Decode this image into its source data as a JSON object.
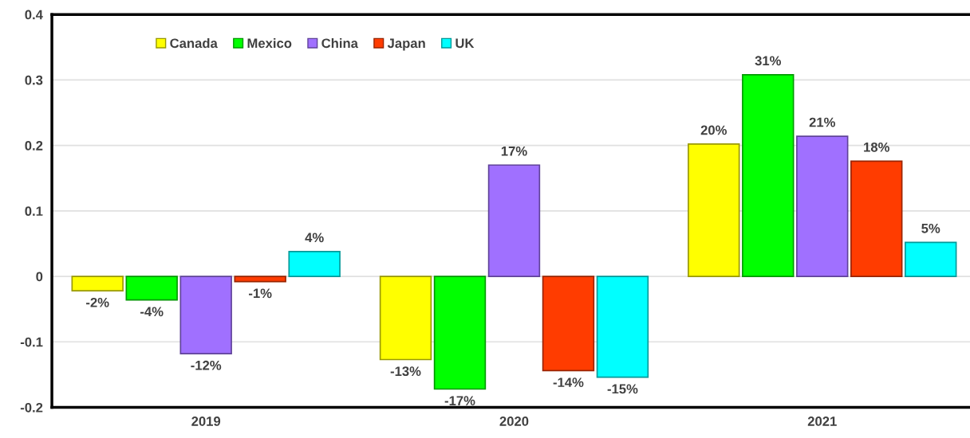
{
  "chart_data": {
    "type": "bar",
    "categories": [
      "2019",
      "2020",
      "2021"
    ],
    "series": [
      {
        "name": "Canada",
        "color": "#ffff00",
        "values": [
          -0.022,
          -0.127,
          0.202
        ],
        "value_labels": [
          "-2%",
          "-13%",
          "20%"
        ]
      },
      {
        "name": "Mexico",
        "color": "#00ff00",
        "values": [
          -0.036,
          -0.172,
          0.308
        ],
        "value_labels": [
          "-4%",
          "-17%",
          "31%"
        ]
      },
      {
        "name": "China",
        "color": "#a070ff",
        "values": [
          -0.118,
          0.17,
          0.214
        ],
        "value_labels": [
          "-12%",
          "17%",
          "21%"
        ]
      },
      {
        "name": "Japan",
        "color": "#ff3c00",
        "values": [
          -0.008,
          -0.144,
          0.176
        ],
        "value_labels": [
          "-1%",
          "-14%",
          "18%"
        ]
      },
      {
        "name": "UK",
        "color": "#00ffff",
        "values": [
          0.038,
          -0.154,
          0.052
        ],
        "value_labels": [
          "4%",
          "-15%",
          "5%"
        ]
      }
    ],
    "ylim": [
      -0.2,
      0.4
    ],
    "yticks": [
      -0.2,
      -0.1,
      0,
      0.1,
      0.2,
      0.3,
      0.4
    ],
    "grid": "y",
    "legend": "top left"
  }
}
